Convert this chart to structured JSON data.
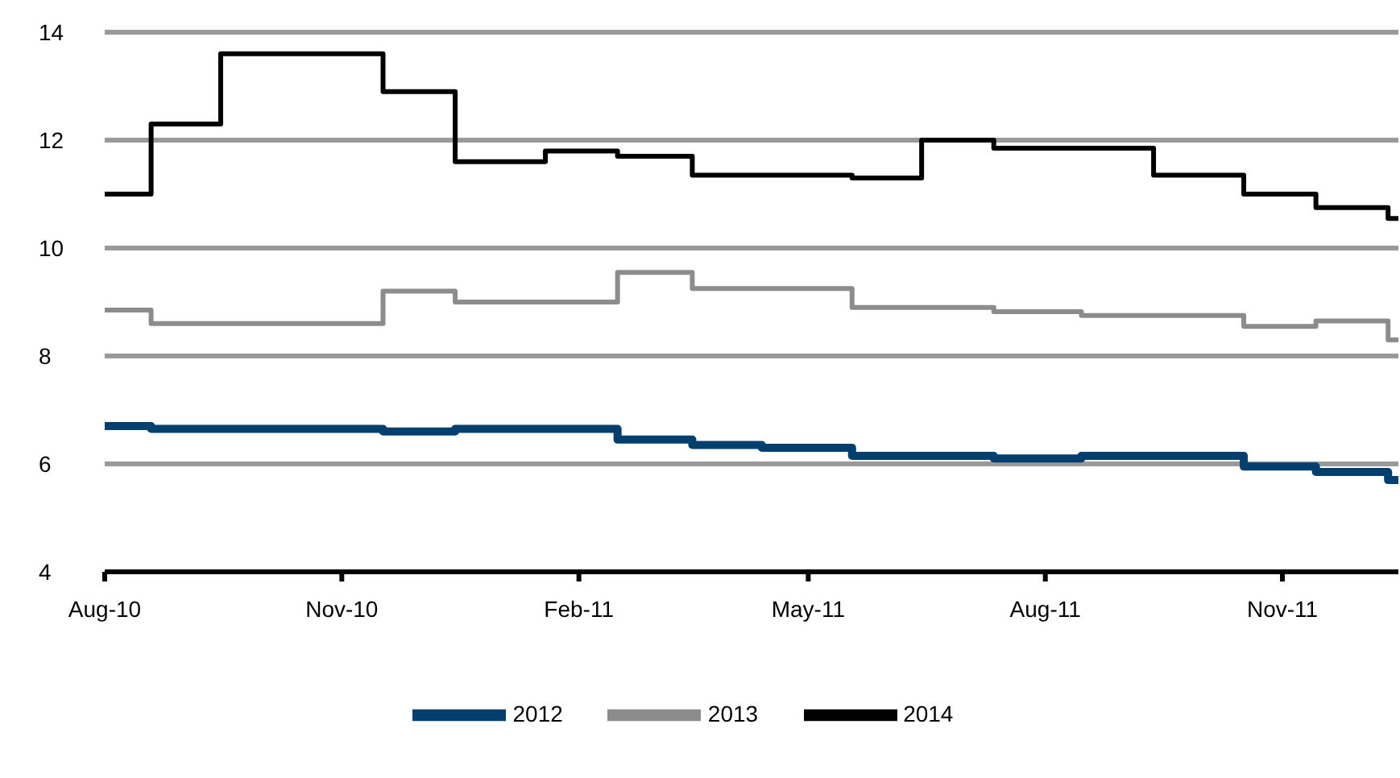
{
  "chart_data": {
    "type": "step",
    "xlim": [
      "2010-08-01",
      "2011-12-16"
    ],
    "xticks": [
      {
        "value": "2010-08-01",
        "label": "Aug-10"
      },
      {
        "value": "2010-11-01",
        "label": "Nov-10"
      },
      {
        "value": "2011-02-01",
        "label": "Feb-11"
      },
      {
        "value": "2011-05-01",
        "label": "May-11"
      },
      {
        "value": "2011-08-01",
        "label": "Aug-11"
      },
      {
        "value": "2011-11-01",
        "label": "Nov-11"
      }
    ],
    "ylim": [
      4,
      14
    ],
    "yticks": [
      4,
      6,
      8,
      10,
      12,
      14
    ],
    "grid": "y",
    "legend": "bottom",
    "marker": "none",
    "line_style": "solid",
    "series": [
      {
        "name": "2012",
        "color": "#003f6e",
        "x": [
          "2010-08-01",
          "2010-08-19",
          "2010-11-17",
          "2010-12-15",
          "2011-02-16",
          "2011-03-17",
          "2011-04-13",
          "2011-05-18",
          "2011-07-12",
          "2011-08-15",
          "2011-10-17",
          "2011-11-14",
          "2011-12-12",
          "2011-12-16"
        ],
        "values": [
          6.7,
          6.65,
          6.6,
          6.65,
          6.45,
          6.35,
          6.3,
          6.15,
          6.1,
          6.15,
          5.95,
          5.85,
          5.7,
          5.7
        ]
      },
      {
        "name": "2013",
        "color": "#8c8c8c",
        "x": [
          "2010-08-01",
          "2010-08-19",
          "2010-11-17",
          "2010-12-15",
          "2011-02-16",
          "2011-03-17",
          "2011-05-18",
          "2011-07-12",
          "2011-08-15",
          "2011-10-17",
          "2011-11-14",
          "2011-12-12",
          "2011-12-16"
        ],
        "values": [
          8.85,
          8.6,
          9.2,
          9.0,
          9.55,
          9.25,
          8.9,
          8.82,
          8.75,
          8.55,
          8.65,
          8.3,
          8.3
        ]
      },
      {
        "name": "2014",
        "color": "#000000",
        "x": [
          "2010-08-01",
          "2010-08-19",
          "2010-09-15",
          "2010-11-17",
          "2010-12-15",
          "2011-01-19",
          "2011-02-16",
          "2011-03-17",
          "2011-05-18",
          "2011-06-14",
          "2011-07-12",
          "2011-09-12",
          "2011-10-17",
          "2011-11-14",
          "2011-12-12",
          "2011-12-16"
        ],
        "values": [
          11.0,
          12.3,
          13.6,
          12.9,
          11.6,
          11.8,
          11.7,
          11.35,
          11.3,
          12.0,
          11.85,
          11.35,
          11.0,
          10.75,
          10.55,
          10.55
        ]
      }
    ]
  }
}
